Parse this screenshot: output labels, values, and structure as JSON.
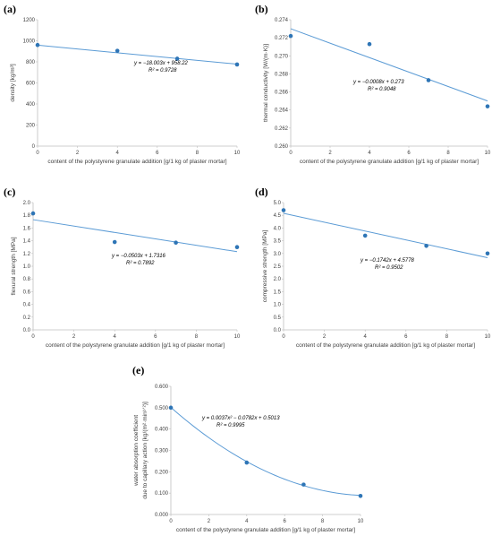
{
  "chart_data": [
    {
      "id": "a",
      "type": "scatter",
      "panel_label": "(a)",
      "xlabel": "content of the polystyrene granulate addition [g/1 kg of plaster mortar]",
      "ylabel": "density [kg/m³]",
      "xlim": [
        0,
        10
      ],
      "xticks": [
        0,
        2,
        4,
        6,
        8,
        10
      ],
      "ylim": [
        0,
        1200
      ],
      "yticks": [
        0,
        200,
        400,
        600,
        800,
        1000,
        1200
      ],
      "ydecimals": 0,
      "grid": false,
      "series": [
        {
          "x": [
            0,
            4,
            7,
            10
          ],
          "values": [
            960,
            905,
            830,
            775
          ]
        }
      ],
      "trendline": {
        "kind": "linear",
        "coeffs": [
          958.22,
          -18.003
        ]
      },
      "equation": "y = −18.003x + 958.22",
      "r2": "R² = 0.9728"
    },
    {
      "id": "b",
      "type": "scatter",
      "panel_label": "(b)",
      "xlabel": "content of the polystyrene granulate addition [g/1 kg of plaster mortar]",
      "ylabel": "thermal conductivity [W/(m·K)]",
      "xlim": [
        0,
        10
      ],
      "xticks": [
        0,
        2,
        4,
        6,
        8,
        10
      ],
      "ylim": [
        0.26,
        0.274
      ],
      "yticks": [
        0.26,
        0.262,
        0.264,
        0.266,
        0.268,
        0.27,
        0.272,
        0.274
      ],
      "ydecimals": 3,
      "grid": false,
      "series": [
        {
          "x": [
            0,
            4,
            7,
            10
          ],
          "values": [
            0.2722,
            0.2713,
            0.2673,
            0.2644
          ]
        }
      ],
      "trendline": {
        "kind": "linear",
        "coeffs": [
          0.273,
          -0.0008
        ]
      },
      "equation": "y = −0.0008x + 0.273",
      "r2": "R² = 0.9048"
    },
    {
      "id": "c",
      "type": "scatter",
      "panel_label": "(c)",
      "xlabel": "content of the polystyrene granulate addition [g/1 kg of plaster mortar]",
      "ylabel": "flexural strength [MPa]",
      "xlim": [
        0,
        10
      ],
      "xticks": [
        0,
        2,
        4,
        6,
        8,
        10
      ],
      "ylim": [
        0,
        2
      ],
      "yticks": [
        0,
        0.2,
        0.4,
        0.6,
        0.8,
        1,
        1.2,
        1.4,
        1.6,
        1.8,
        2
      ],
      "ydecimals": 1,
      "grid": false,
      "series": [
        {
          "x": [
            0,
            4,
            7,
            10
          ],
          "values": [
            1.83,
            1.38,
            1.37,
            1.3
          ]
        }
      ],
      "trendline": {
        "kind": "linear",
        "coeffs": [
          1.7316,
          -0.0503
        ]
      },
      "equation": "y = −0.0503x + 1.7316",
      "r2": "R² = 0.7892"
    },
    {
      "id": "d",
      "type": "scatter",
      "panel_label": "(d)",
      "xlabel": "content of the polystyrene granulate addition [g/1 kg of plaster mortar]",
      "ylabel": "compressive strength [MPa]",
      "xlim": [
        0,
        10
      ],
      "xticks": [
        0,
        2,
        4,
        6,
        8,
        10
      ],
      "ylim": [
        0,
        5
      ],
      "yticks": [
        0,
        0.5,
        1,
        1.5,
        2,
        2.5,
        3,
        3.5,
        4,
        4.5,
        5
      ],
      "ydecimals": 1,
      "grid": false,
      "series": [
        {
          "x": [
            0,
            4,
            7,
            10
          ],
          "values": [
            4.7,
            3.7,
            3.3,
            3.0
          ]
        }
      ],
      "trendline": {
        "kind": "linear",
        "coeffs": [
          4.5778,
          -0.1742
        ]
      },
      "equation": "y = −0.1742x + 4.5778",
      "r2": "R² = 0.9502"
    },
    {
      "id": "e",
      "type": "scatter",
      "panel_label": "(e)",
      "xlabel": "content of the polystyrene granulate addition [g/1 kg of plaster mortar]",
      "ylabel": [
        "water absorption coefficient",
        "due to capillary action [kg/(m²·min¹ᐟ²)]"
      ],
      "xlim": [
        0,
        10
      ],
      "xticks": [
        0,
        2,
        4,
        6,
        8,
        10
      ],
      "ylim": [
        0,
        0.6
      ],
      "yticks": [
        0,
        0.1,
        0.2,
        0.3,
        0.4,
        0.5,
        0.6
      ],
      "ydecimals": 3,
      "grid": false,
      "series": [
        {
          "x": [
            0,
            4,
            7,
            10
          ],
          "values": [
            0.5,
            0.243,
            0.14,
            0.087
          ]
        }
      ],
      "trendline": {
        "kind": "quadratic",
        "coeffs": [
          0.5013,
          -0.0782,
          0.0037
        ]
      },
      "equation": "y = 0.0037x² − 0.0782x + 0.5013",
      "r2": "R² = 0.9995"
    }
  ],
  "style": {
    "marker_color": "#2e75b6",
    "line_color": "#5b9bd5",
    "axis_color": "#bfbfbf"
  }
}
